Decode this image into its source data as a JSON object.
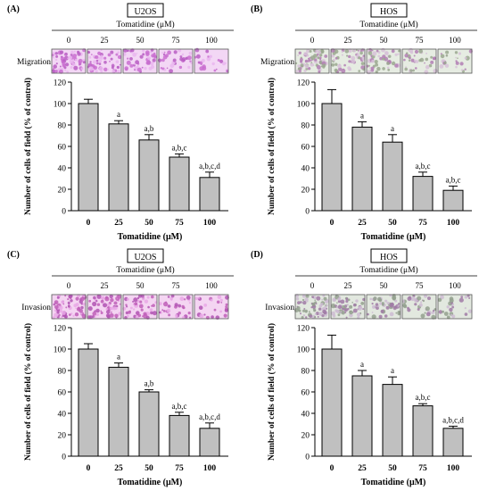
{
  "figure": {
    "panels": [
      {
        "letter": "(A)",
        "cell_line": "U2OS",
        "treatment_label": "Tomatidine (μM)",
        "row_label": "Migration",
        "image_colors": [
          "#c96fd0",
          "#e9b6ee",
          "#b85ec3",
          "#f3d7f5"
        ],
        "bar_color": "#c0c0c0"
      },
      {
        "letter": "(B)",
        "cell_line": "HOS",
        "treatment_label": "Tomatidine (μM)",
        "row_label": "Migration",
        "image_colors": [
          "#b17fb4",
          "#d7c2d8",
          "#9aa88f",
          "#e6ece2"
        ],
        "bar_color": "#c0c0c0"
      },
      {
        "letter": "(C)",
        "cell_line": "U2OS",
        "treatment_label": "Tomatidine (μM)",
        "row_label": "Invasion",
        "image_colors": [
          "#c05fb8",
          "#e9a8e6",
          "#b053b3",
          "#f4d5f2"
        ],
        "bar_color": "#c0c0c0"
      },
      {
        "letter": "(D)",
        "cell_line": "HOS",
        "treatment_label": "Tomatidine (μM)",
        "row_label": "Invasion",
        "image_colors": [
          "#a07aa6",
          "#cdbbd2",
          "#93a08e",
          "#e2e8df"
        ],
        "bar_color": "#c0c0c0"
      }
    ]
  },
  "chart_data": [
    {
      "type": "bar",
      "title": "",
      "categories": [
        "0",
        "25",
        "50",
        "75",
        "100"
      ],
      "values": [
        100,
        81,
        66,
        50,
        31
      ],
      "errors": [
        4,
        3,
        5,
        3,
        5
      ],
      "annotations": [
        "",
        "a",
        "a,b",
        "a,b,c",
        "a,b,c,d"
      ],
      "xlabel": "Tomatidine (μM)",
      "ylabel": "Number of cells of field (% of control)",
      "ylim": [
        0,
        120
      ],
      "yticks": [
        0,
        20,
        40,
        60,
        80,
        100,
        120
      ],
      "grid": false
    },
    {
      "type": "bar",
      "title": "",
      "categories": [
        "0",
        "25",
        "50",
        "75",
        "100"
      ],
      "values": [
        100,
        78,
        64,
        32,
        19
      ],
      "errors": [
        13,
        5,
        7,
        4,
        4
      ],
      "annotations": [
        "",
        "a",
        "a",
        "a,b,c",
        "a,b,c"
      ],
      "xlabel": "Tomatidine (μM)",
      "ylabel": "Number of cells of field (% of control)",
      "ylim": [
        0,
        120
      ],
      "yticks": [
        0,
        20,
        40,
        60,
        80,
        100,
        120
      ],
      "grid": false
    },
    {
      "type": "bar",
      "title": "",
      "categories": [
        "0",
        "25",
        "50",
        "75",
        "100"
      ],
      "values": [
        100,
        83,
        60,
        38,
        26
      ],
      "errors": [
        5,
        4,
        2,
        3,
        5
      ],
      "annotations": [
        "",
        "a",
        "a,b",
        "a,b,c",
        "a,b,c,d"
      ],
      "xlabel": "Tomatidine (μM)",
      "ylabel": "Number of cells of field (% of control)",
      "ylim": [
        0,
        120
      ],
      "yticks": [
        0,
        20,
        40,
        60,
        80,
        100,
        120
      ],
      "grid": false
    },
    {
      "type": "bar",
      "title": "",
      "categories": [
        "0",
        "25",
        "50",
        "75",
        "100"
      ],
      "values": [
        100,
        75,
        67,
        47,
        26
      ],
      "errors": [
        13,
        5,
        7,
        2,
        2
      ],
      "annotations": [
        "",
        "a",
        "a",
        "a,b,c",
        "a,b,c,d"
      ],
      "xlabel": "Tomatidine (μM)",
      "ylabel": "Number of cells of field (% of control)",
      "ylim": [
        0,
        120
      ],
      "yticks": [
        0,
        20,
        40,
        60,
        80,
        100,
        120
      ],
      "grid": false
    }
  ]
}
